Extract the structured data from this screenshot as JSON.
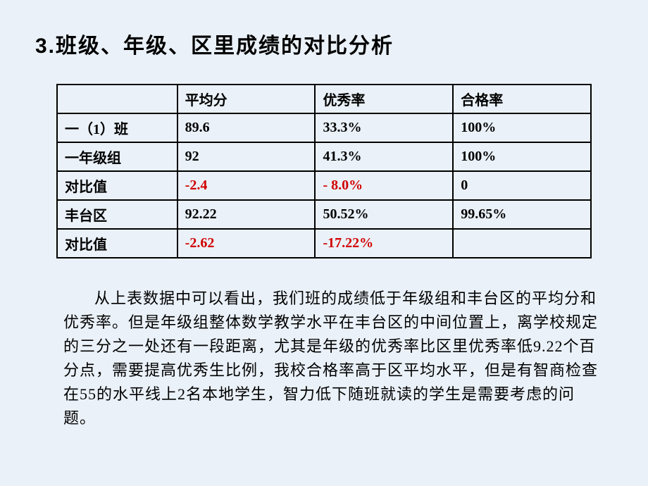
{
  "title_num": "3.",
  "title_text": "班级、年级、区里成绩的对比分析",
  "table": {
    "headers": [
      "",
      "平均分",
      "优秀率",
      "合格率"
    ],
    "rows": [
      {
        "label": "一（1）班",
        "cells": [
          {
            "v": "89.6",
            "red": false
          },
          {
            "v": "33.3%",
            "red": false
          },
          {
            "v": "100%",
            "red": false
          }
        ]
      },
      {
        "label": "一年级组",
        "cells": [
          {
            "v": "92",
            "red": false
          },
          {
            "v": "41.3%",
            "red": false
          },
          {
            "v": "100%",
            "red": false
          }
        ]
      },
      {
        "label": "对比值",
        "cells": [
          {
            "v": "-2.4",
            "red": true
          },
          {
            "v": "- 8.0%",
            "red": true
          },
          {
            "v": "0",
            "red": false
          }
        ]
      },
      {
        "label": "丰台区",
        "cells": [
          {
            "v": "92.22",
            "red": false
          },
          {
            "v": "50.52%",
            "red": false
          },
          {
            "v": "99.65%",
            "red": false
          }
        ]
      },
      {
        "label": "对比值",
        "cells": [
          {
            "v": "-2.62",
            "red": true
          },
          {
            "v": "-17.22%",
            "red": true
          },
          {
            "v": "",
            "red": false
          }
        ]
      }
    ]
  },
  "paragraph": "从上表数据中可以看出，我们班的成绩低于年级组和丰台区的平均分和优秀率。但是年级组整体数学教学水平在丰台区的中间位置上，离学校规定的三分之一处还有一段距离，尤其是年级的优秀率比区里优秀率低9.22个百分点，需要提高优秀生比例，我校合格率高于区平均水平，但是有智商检查在55的水平线上2名本地学生，智力低下随班就读的学生是需要考虑的问题。",
  "styling": {
    "background_color": "#eaf1f8",
    "title_fontsize": 30,
    "table_border_color": "#000000",
    "table_border_width": 2,
    "cell_fontsize": 20,
    "red_color": "#d10000",
    "paragraph_fontsize": 22,
    "paragraph_indent_em": 2,
    "font_family_title": "KaiTi",
    "font_family_table": "SimSun",
    "font_family_paragraph": "KaiTi"
  }
}
